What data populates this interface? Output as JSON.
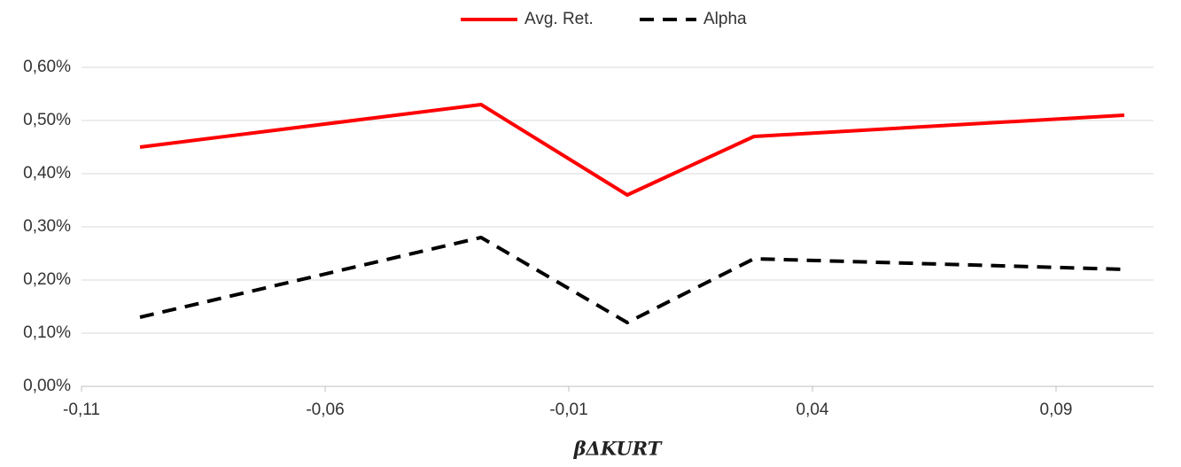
{
  "chart_data": {
    "type": "line",
    "x_label": "βΔKURT",
    "xlim": [
      -0.11,
      0.11
    ],
    "xticks": [
      {
        "value": -0.11,
        "label": "-0,11"
      },
      {
        "value": -0.06,
        "label": "-0,06"
      },
      {
        "value": -0.01,
        "label": "-0,01"
      },
      {
        "value": 0.04,
        "label": "0,04"
      },
      {
        "value": 0.09,
        "label": "0,09"
      }
    ],
    "ylim": [
      0,
      0.6
    ],
    "yticks": [
      {
        "value": 0,
        "label": "0,00%"
      },
      {
        "value": 0.1,
        "label": "0,10%"
      },
      {
        "value": 0.2,
        "label": "0,20%"
      },
      {
        "value": 0.3,
        "label": "0,30%"
      },
      {
        "value": 0.4,
        "label": "0,40%"
      },
      {
        "value": 0.5,
        "label": "0,50%"
      },
      {
        "value": 0.6,
        "label": "0,60%"
      }
    ],
    "grid": true,
    "legend": "top",
    "x": [
      -0.098,
      -0.028,
      0.002,
      0.028,
      0.104
    ],
    "series": [
      {
        "name": "Avg. Ret.",
        "color": "#ff0000",
        "line_style": "solid",
        "values": [
          0.45,
          0.53,
          0.36,
          0.47,
          0.51
        ]
      },
      {
        "name": "Alpha",
        "color": "#000000",
        "line_style": "dashed",
        "values": [
          0.13,
          0.28,
          0.12,
          0.24,
          0.22
        ]
      }
    ]
  }
}
